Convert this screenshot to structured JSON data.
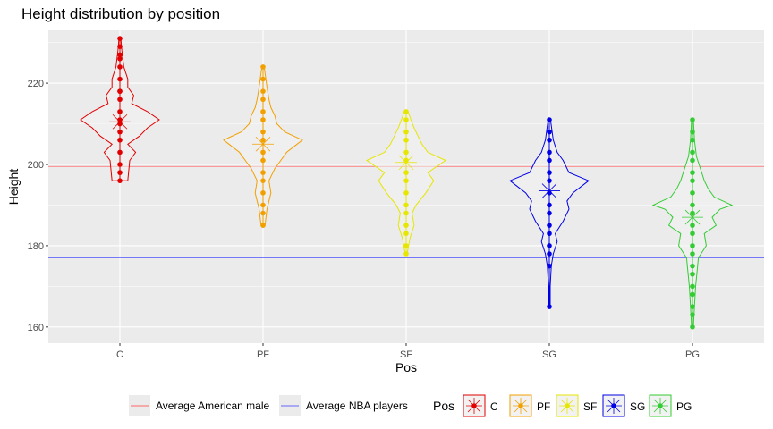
{
  "chart_data": {
    "type": "violin",
    "title": "Height distribution by position",
    "xlabel": "Pos",
    "ylabel": "Height",
    "ylim": [
      156,
      233
    ],
    "yticks": [
      160,
      180,
      200,
      220
    ],
    "categories": [
      "C",
      "PF",
      "SF",
      "SG",
      "PG"
    ],
    "colors": [
      "#e00000",
      "#f2a000",
      "#e6e600",
      "#0000e6",
      "#33cc33"
    ],
    "means": [
      210.5,
      205,
      200.5,
      193.5,
      187
    ],
    "ranges": [
      [
        196,
        231
      ],
      [
        185,
        224
      ],
      [
        178,
        213
      ],
      [
        165,
        211
      ],
      [
        160,
        211
      ]
    ],
    "points": [
      [
        196,
        198,
        200,
        203,
        206,
        208,
        210,
        211,
        213,
        216,
        218,
        218,
        221,
        224,
        226,
        227,
        229,
        231
      ],
      [
        185,
        188,
        190,
        193,
        196,
        198,
        201,
        203,
        206,
        208,
        211,
        213,
        216,
        218,
        221,
        224
      ],
      [
        178,
        180,
        183,
        185,
        188,
        190,
        193,
        196,
        198,
        201,
        203,
        206,
        208,
        211,
        213
      ],
      [
        165,
        175,
        178,
        180,
        183,
        185,
        188,
        190,
        193,
        196,
        198,
        201,
        203,
        206,
        208,
        211
      ],
      [
        160,
        163,
        165,
        168,
        170,
        173,
        175,
        178,
        180,
        183,
        185,
        188,
        190,
        193,
        196,
        198,
        201,
        203,
        206,
        208,
        211
      ]
    ],
    "density_peaks": [
      [
        [
          196,
          0.2
        ],
        [
          201,
          0.25
        ],
        [
          203,
          0.4
        ],
        [
          205,
          0.2
        ],
        [
          207,
          0.5
        ],
        [
          209,
          0.7
        ],
        [
          211,
          1.0
        ],
        [
          213,
          0.7
        ],
        [
          215,
          0.3
        ],
        [
          217,
          0.35
        ],
        [
          219,
          0.2
        ],
        [
          221,
          0.2
        ],
        [
          224,
          0.1
        ],
        [
          228,
          0.05
        ],
        [
          231,
          0.02
        ]
      ],
      [
        [
          185,
          0.05
        ],
        [
          189,
          0.1
        ],
        [
          193,
          0.2
        ],
        [
          196,
          0.15
        ],
        [
          199,
          0.3
        ],
        [
          201,
          0.45
        ],
        [
          203,
          0.6
        ],
        [
          206,
          1.0
        ],
        [
          208,
          0.55
        ],
        [
          210,
          0.35
        ],
        [
          212,
          0.3
        ],
        [
          214,
          0.2
        ],
        [
          216,
          0.15
        ],
        [
          219,
          0.1
        ],
        [
          224,
          0.03
        ]
      ],
      [
        [
          178,
          0.02
        ],
        [
          182,
          0.1
        ],
        [
          185,
          0.2
        ],
        [
          188,
          0.15
        ],
        [
          190,
          0.25
        ],
        [
          193,
          0.5
        ],
        [
          196,
          0.7
        ],
        [
          198,
          0.55
        ],
        [
          201,
          1.0
        ],
        [
          203,
          0.55
        ],
        [
          205,
          0.4
        ],
        [
          207,
          0.3
        ],
        [
          209,
          0.2
        ],
        [
          211,
          0.12
        ],
        [
          213,
          0.05
        ]
      ],
      [
        [
          165,
          0.02
        ],
        [
          170,
          0.02
        ],
        [
          175,
          0.05
        ],
        [
          178,
          0.1
        ],
        [
          181,
          0.2
        ],
        [
          183,
          0.15
        ],
        [
          186,
          0.35
        ],
        [
          189,
          0.5
        ],
        [
          191,
          0.45
        ],
        [
          193,
          0.6
        ],
        [
          196,
          1.0
        ],
        [
          198,
          0.5
        ],
        [
          201,
          0.35
        ],
        [
          203,
          0.2
        ],
        [
          206,
          0.1
        ],
        [
          211,
          0.03
        ]
      ],
      [
        [
          160,
          0.02
        ],
        [
          165,
          0.05
        ],
        [
          170,
          0.08
        ],
        [
          174,
          0.12
        ],
        [
          177,
          0.15
        ],
        [
          180,
          0.35
        ],
        [
          183,
          0.3
        ],
        [
          185,
          0.6
        ],
        [
          187,
          0.5
        ],
        [
          189,
          0.7
        ],
        [
          190,
          1.0
        ],
        [
          192,
          0.55
        ],
        [
          194,
          0.4
        ],
        [
          196,
          0.3
        ],
        [
          199,
          0.2
        ],
        [
          202,
          0.1
        ],
        [
          206,
          0.05
        ],
        [
          211,
          0.02
        ]
      ]
    ],
    "hlines": [
      {
        "name": "Average American male",
        "value": 177,
        "color": "#6666ff"
      },
      {
        "name": "Average NBA players",
        "value": 199.5,
        "color": "#ff6666"
      }
    ],
    "grid": true,
    "legend_position": "bottom",
    "legend_title": "Pos"
  }
}
